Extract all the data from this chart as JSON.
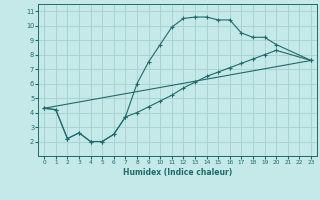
{
  "xlabel": "Humidex (Indice chaleur)",
  "xlim": [
    -0.5,
    23.5
  ],
  "ylim": [
    1,
    11.5
  ],
  "xticks": [
    0,
    1,
    2,
    3,
    4,
    5,
    6,
    7,
    8,
    9,
    10,
    11,
    12,
    13,
    14,
    15,
    16,
    17,
    18,
    19,
    20,
    21,
    22,
    23
  ],
  "yticks": [
    2,
    3,
    4,
    5,
    6,
    7,
    8,
    9,
    10,
    11
  ],
  "bg_color": "#c5e8e8",
  "line_color": "#1e6b6b",
  "grid_color": "#a8d0d0",
  "line1_x": [
    0,
    1,
    2,
    3,
    4,
    5,
    6,
    7,
    8,
    9,
    10,
    11,
    12,
    13,
    14,
    15,
    16,
    17,
    18,
    19,
    20,
    23
  ],
  "line1_y": [
    4.3,
    4.2,
    2.2,
    2.6,
    2.0,
    2.0,
    2.5,
    3.7,
    6.0,
    7.5,
    8.7,
    9.9,
    10.5,
    10.6,
    10.6,
    10.4,
    10.4,
    9.5,
    9.2,
    9.2,
    8.7,
    7.6
  ],
  "line2_x": [
    0,
    1,
    2,
    3,
    4,
    5,
    6,
    7,
    8,
    9,
    10,
    11,
    12,
    13,
    14,
    15,
    16,
    17,
    18,
    19,
    20,
    23
  ],
  "line2_y": [
    4.3,
    4.2,
    2.2,
    2.6,
    2.0,
    2.0,
    2.5,
    3.7,
    4.0,
    4.4,
    4.8,
    5.2,
    5.7,
    6.1,
    6.5,
    6.8,
    7.1,
    7.4,
    7.7,
    8.0,
    8.3,
    7.6
  ],
  "line3_x": [
    0,
    23
  ],
  "line3_y": [
    4.3,
    7.6
  ]
}
